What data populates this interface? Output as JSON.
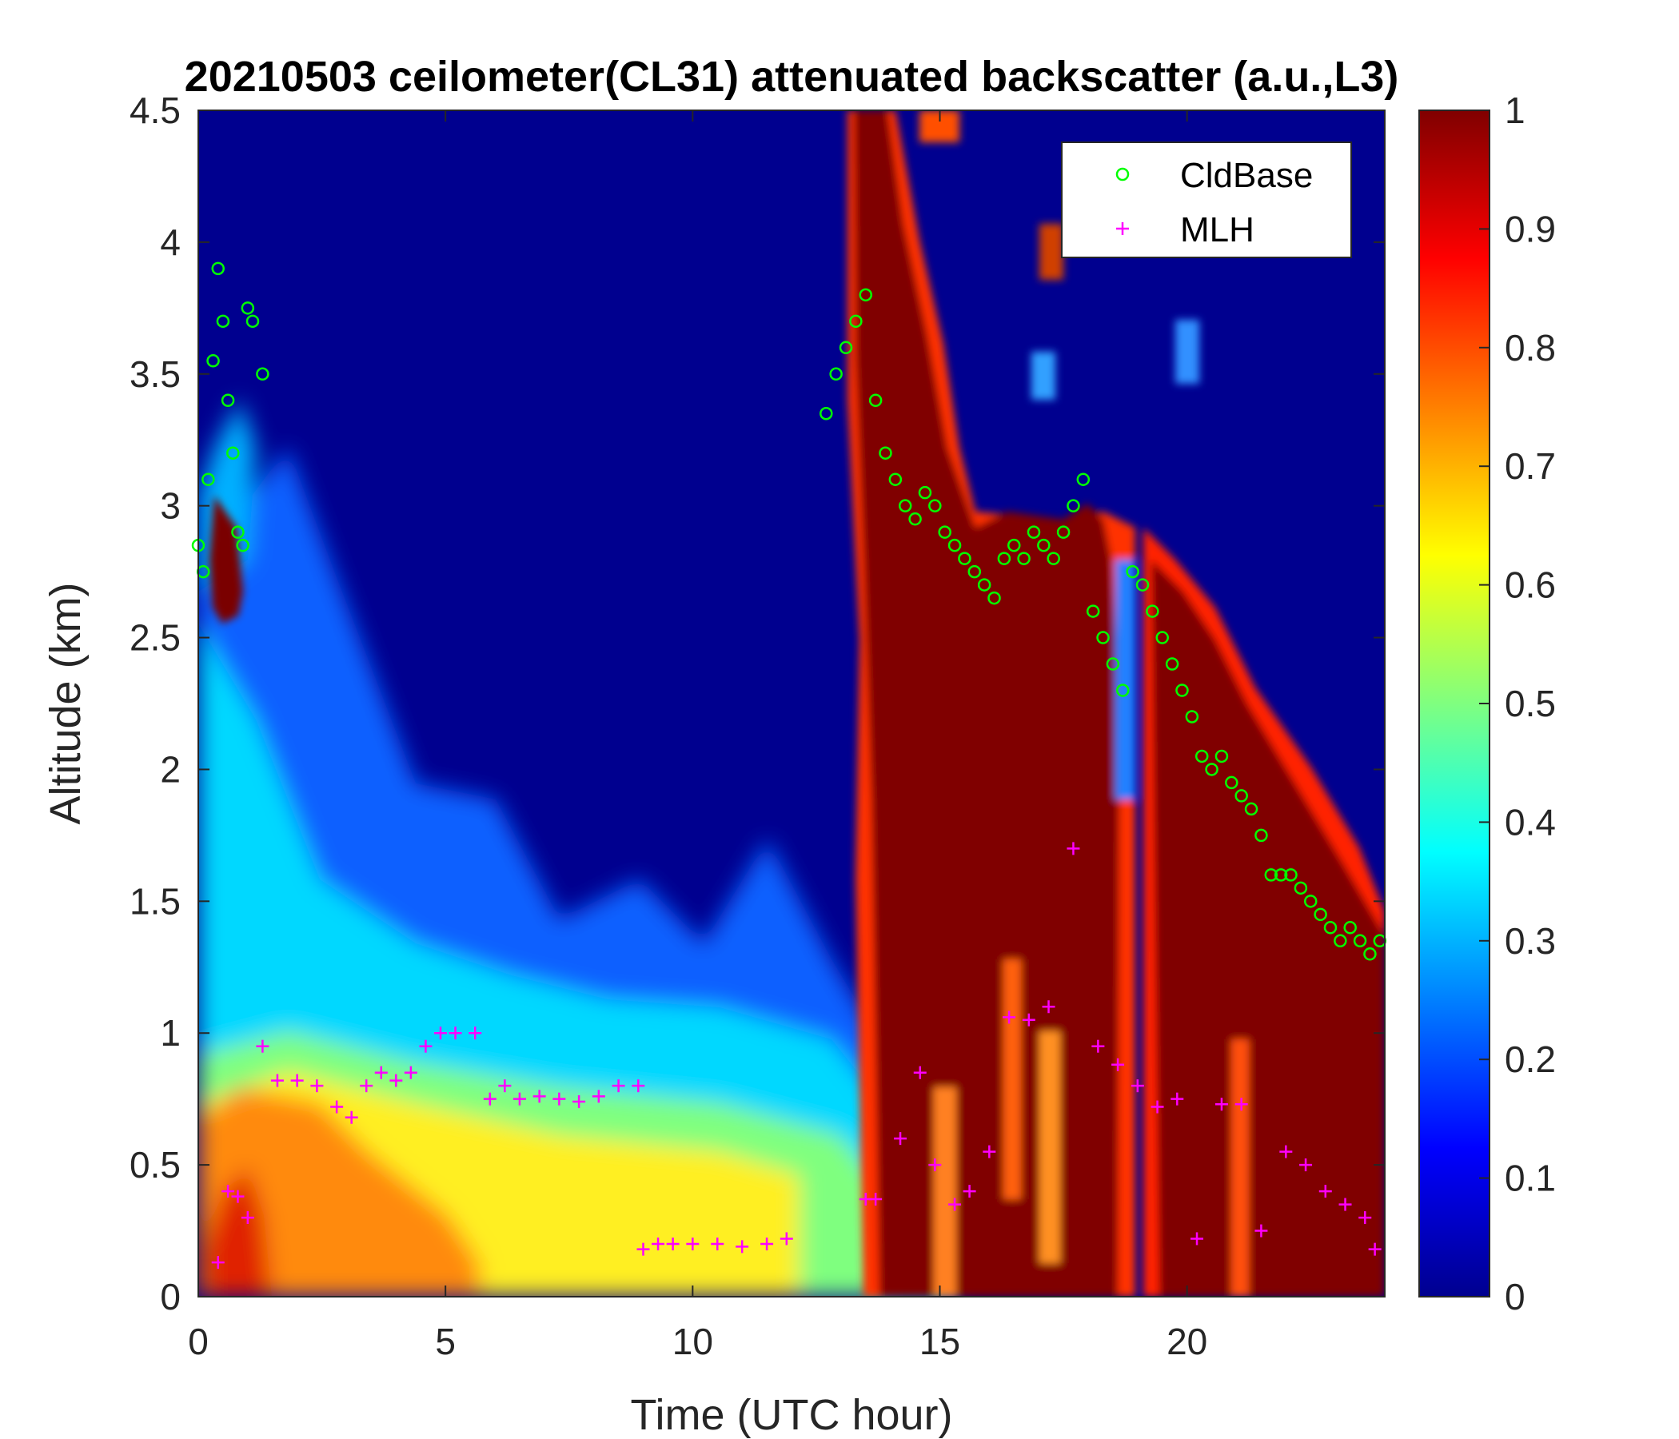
{
  "chart_data": {
    "type": "heatmap",
    "title": "20210503 ceilometer(CL31) attenuated backscatter (a.u.,L3)",
    "xlabel": "Time (UTC hour)",
    "ylabel": "Altitude (km)",
    "xlim": [
      0,
      24
    ],
    "ylim": [
      0,
      4.5
    ],
    "xticks": [
      "0",
      "5",
      "10",
      "15",
      "20"
    ],
    "yticks": [
      "0",
      "0.5",
      "1",
      "1.5",
      "2",
      "2.5",
      "3",
      "3.5",
      "4",
      "4.5"
    ],
    "colorbar": {
      "range": [
        0,
        1
      ],
      "colormap": "jet",
      "ticks": [
        "0",
        "0.1",
        "0.2",
        "0.3",
        "0.4",
        "0.5",
        "0.6",
        "0.7",
        "0.8",
        "0.9",
        "1"
      ]
    },
    "legend": {
      "placement": "top-right",
      "entries": [
        {
          "label": "CldBase",
          "marker": "circle",
          "color": "#00ff00"
        },
        {
          "label": "MLH",
          "marker": "plus",
          "color": "#ff00ff"
        }
      ]
    },
    "series": [
      {
        "name": "CldBase",
        "x": [
          0.0,
          0.1,
          0.2,
          0.3,
          0.4,
          0.5,
          0.6,
          0.7,
          0.8,
          0.9,
          1.0,
          1.1,
          1.3,
          12.7,
          12.9,
          13.1,
          13.3,
          13.5,
          13.7,
          13.9,
          14.1,
          14.3,
          14.5,
          14.7,
          14.9,
          15.1,
          15.3,
          15.5,
          15.7,
          15.9,
          16.1,
          16.3,
          16.5,
          16.7,
          16.9,
          17.1,
          17.3,
          17.5,
          17.7,
          17.9,
          18.1,
          18.3,
          18.5,
          18.7,
          18.9,
          19.1,
          19.3,
          19.5,
          19.7,
          19.9,
          20.1,
          20.3,
          20.5,
          20.7,
          20.9,
          21.1,
          21.3,
          21.5,
          21.7,
          21.9,
          22.1,
          22.3,
          22.5,
          22.7,
          22.9,
          23.1,
          23.3,
          23.5,
          23.7,
          23.9
        ],
        "y": [
          2.85,
          2.75,
          3.1,
          3.55,
          3.9,
          3.7,
          3.4,
          3.2,
          2.9,
          2.85,
          3.75,
          3.7,
          3.5,
          3.35,
          3.5,
          3.6,
          3.7,
          3.8,
          3.4,
          3.2,
          3.1,
          3.0,
          2.95,
          3.05,
          3.0,
          2.9,
          2.85,
          2.8,
          2.75,
          2.7,
          2.65,
          2.8,
          2.85,
          2.8,
          2.9,
          2.85,
          2.8,
          2.9,
          3.0,
          3.1,
          2.6,
          2.5,
          2.4,
          2.3,
          2.75,
          2.7,
          2.6,
          2.5,
          2.4,
          2.3,
          2.2,
          2.05,
          2.0,
          2.05,
          1.95,
          1.9,
          1.85,
          1.75,
          1.6,
          1.6,
          1.6,
          1.55,
          1.5,
          1.45,
          1.4,
          1.35,
          1.4,
          1.35,
          1.3,
          1.35
        ]
      },
      {
        "name": "MLH",
        "x": [
          0.4,
          0.6,
          0.8,
          1.0,
          1.3,
          1.6,
          2.0,
          2.4,
          2.8,
          3.1,
          3.4,
          3.7,
          4.0,
          4.3,
          4.6,
          4.9,
          5.2,
          5.6,
          5.9,
          6.2,
          6.5,
          6.9,
          7.3,
          7.7,
          8.1,
          8.5,
          8.9,
          9.0,
          9.3,
          9.6,
          10.0,
          10.5,
          11.0,
          11.5,
          11.9,
          13.5,
          13.7,
          14.2,
          14.6,
          14.9,
          15.3,
          15.6,
          16.0,
          16.4,
          16.8,
          17.2,
          17.7,
          18.2,
          18.6,
          19.0,
          19.4,
          19.8,
          20.2,
          20.7,
          21.1,
          21.5,
          22.0,
          22.4,
          22.8,
          23.2,
          23.6,
          23.8
        ],
        "y": [
          0.13,
          0.4,
          0.38,
          0.3,
          0.95,
          0.82,
          0.82,
          0.8,
          0.72,
          0.68,
          0.8,
          0.85,
          0.82,
          0.85,
          0.95,
          1.0,
          1.0,
          1.0,
          0.75,
          0.8,
          0.75,
          0.76,
          0.75,
          0.74,
          0.76,
          0.8,
          0.8,
          0.18,
          0.2,
          0.2,
          0.2,
          0.2,
          0.19,
          0.2,
          0.22,
          0.37,
          0.37,
          0.6,
          0.85,
          0.5,
          0.35,
          0.4,
          0.55,
          1.06,
          1.05,
          1.1,
          1.7,
          0.95,
          0.88,
          0.8,
          0.72,
          0.75,
          0.22,
          0.73,
          0.73,
          0.25,
          0.55,
          0.5,
          0.4,
          0.35,
          0.3,
          0.18
        ]
      }
    ]
  }
}
